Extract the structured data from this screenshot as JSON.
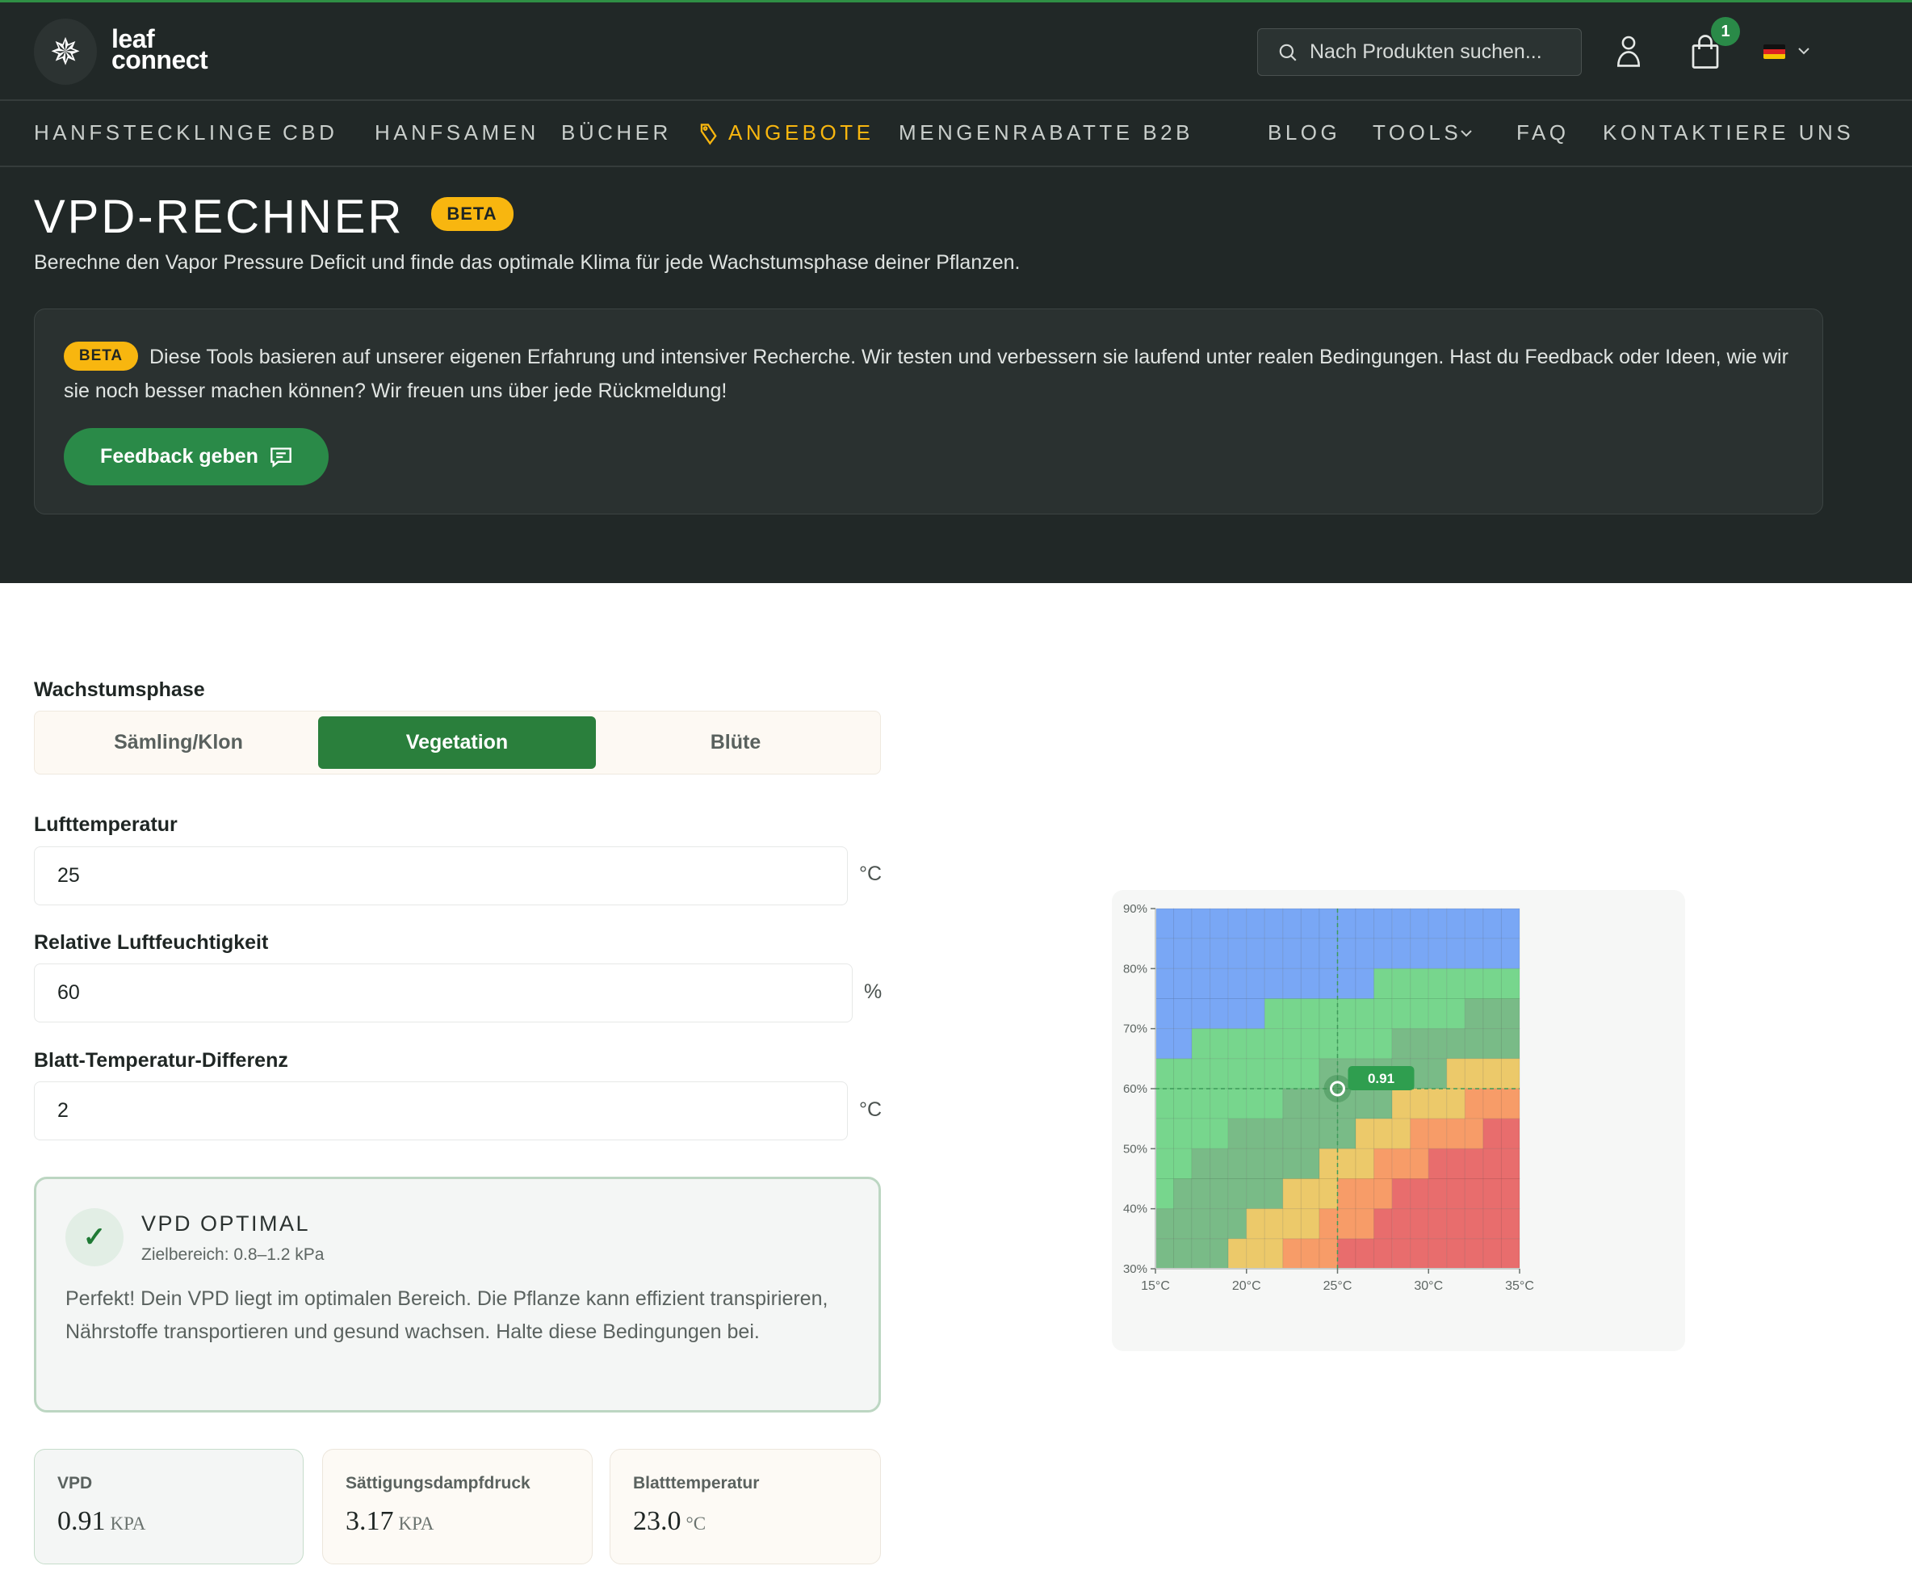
{
  "header": {
    "logo_text_1": "leaf",
    "logo_text_2": "connect",
    "search_placeholder": "Nach Produkten suchen...",
    "cart_count": "1",
    "language": "DE"
  },
  "nav": {
    "items": [
      "HANFSTECKLINGE",
      "CBD",
      "HANFSAMEN",
      "BÜCHER",
      "ANGEBOTE",
      "MENGENRABATTE B2B",
      "BLOG",
      "TOOLS",
      "FAQ",
      "KONTAKTIERE UNS"
    ],
    "highlight_color": "#f8b60f"
  },
  "hero": {
    "title": "VPD-RECHNER",
    "badge": "BETA",
    "subtitle": "Berechne den Vapor Pressure Deficit und finde das optimale Klima für jede Wachstumsphase deiner Pflanzen.",
    "beta_badge": "BETA",
    "beta_text": "Diese Tools basieren auf unserer eigenen Erfahrung und intensiver Recherche. Wir testen und verbessern sie laufend unter realen Bedingungen. Hast du Feedback oder Ideen, wie wir sie noch besser machen können? Wir freuen uns über jede Rückmeldung!",
    "feedback_button": "Feedback geben"
  },
  "form": {
    "phase_label": "Wachstumsphase",
    "phases": [
      "Sämling/Klon",
      "Vegetation",
      "Blüte"
    ],
    "active_phase": "Vegetation",
    "temp_label": "Lufttemperatur",
    "temp_value": "25",
    "temp_unit": "°C",
    "rh_label": "Relative Luftfeuchtigkeit",
    "rh_value": "60",
    "rh_unit": "%",
    "leaf_label": "Blatt-Temperatur-Differenz",
    "leaf_value": "2",
    "leaf_unit": "°C"
  },
  "status": {
    "title": "VPD OPTIMAL",
    "range": "Zielbereich: 0.8–1.2 kPa",
    "text": "Perfekt! Dein VPD liegt im optimalen Bereich. Die Pflanze kann effizient transpirieren, Nährstoffe transportieren und gesund wachsen. Halte diese Bedingungen bei."
  },
  "stats": [
    {
      "label": "VPD",
      "value": "0.91",
      "unit": "KPA"
    },
    {
      "label": "Sättigungsdampfdruck",
      "value": "3.17",
      "unit": "KPA"
    },
    {
      "label": "Blatttemperatur",
      "value": "23.0",
      "unit": "°C"
    }
  ],
  "chart_data": {
    "type": "heatmap",
    "x_ticks": [
      "15°C",
      "20°C",
      "25°C",
      "30°C",
      "35°C"
    ],
    "y_ticks": [
      "90%",
      "80%",
      "70%",
      "60%",
      "50%",
      "40%",
      "30%"
    ],
    "xlim": [
      15,
      35
    ],
    "ylim": [
      30,
      90
    ],
    "x_step": 1,
    "y_step": 5,
    "grid": true,
    "category_colors": {
      "B": "#79a7f5",
      "L": "#77d68d",
      "D": "#79bb87",
      "Y": "#ecc96a",
      "O": "#f79c68",
      "R": "#e86d6d"
    },
    "rows_top_to_bottom": [
      "BBBBBBBBBBBBBBBBBBBB",
      "BBBBBBBBBBBBBBBBBBBB",
      "BBBBBBBBBBBBLLLLLLLL",
      "BBBBBBLLLLLLLLLLLDDD",
      "BBLLLLLLLLLLLDDDDDDD",
      "LLLLLLLLLDDDDDDDYYYY",
      "LLLLLLLDDDDDDYYYYOOO",
      "LLLLDDDDDDDYYYOOOORR",
      "LLDDDDDDDYYYOOORRRRR",
      "LDDDDDDYYYOOORRRRRRR",
      "DDDDDYYYYOOORRRRRRRR",
      "DDDDYYYOOORRRRRRRRRR"
    ],
    "marker": {
      "x": 25,
      "y": 60,
      "label": "0.91"
    }
  }
}
